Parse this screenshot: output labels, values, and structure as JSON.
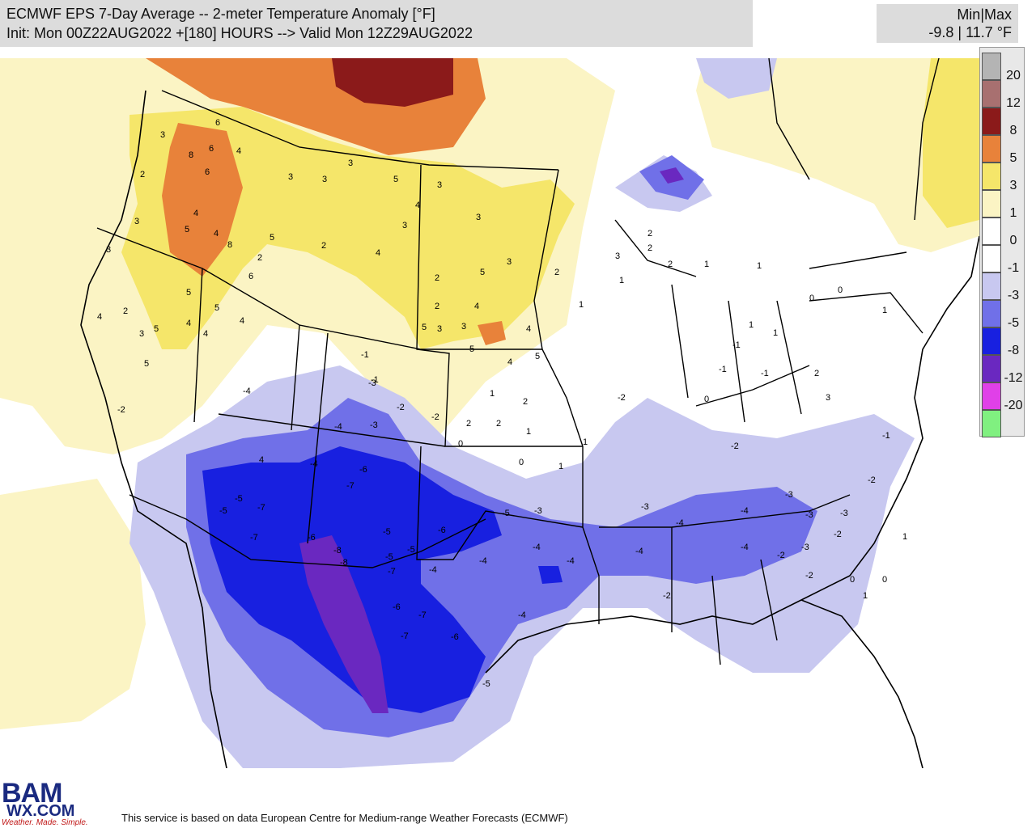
{
  "header": {
    "title_line1": "ECMWF EPS 7-Day Average -- 2-meter Temperature Anomaly [°F]",
    "title_line2": "Init: Mon 00Z22AUG2022 +[180] HOURS --> Valid Mon 12Z29AUG2022"
  },
  "minmax": {
    "label": "Min|Max",
    "value": "-9.8 | 11.7 °F"
  },
  "legend": {
    "levels": [
      {
        "label": "20",
        "color": "#b4b4b4"
      },
      {
        "label": "12",
        "color": "#a87070"
      },
      {
        "label": "8",
        "color": "#8b1a1a"
      },
      {
        "label": "5",
        "color": "#e8823a"
      },
      {
        "label": "3",
        "color": "#f5e66a"
      },
      {
        "label": "1",
        "color": "#fbf4c4"
      },
      {
        "label": "0",
        "color": "#ffffff"
      },
      {
        "label": "-1",
        "color": "#ffffff"
      },
      {
        "label": "-3",
        "color": "#c8c8f0"
      },
      {
        "label": "-5",
        "color": "#7070e8"
      },
      {
        "label": "-8",
        "color": "#1820e0"
      },
      {
        "label": "-12",
        "color": "#6a28c0"
      },
      {
        "label": "-20",
        "color": "#e040e8"
      },
      {
        "label": "",
        "color": "#80f080"
      }
    ]
  },
  "map_values": [
    {
      "t": "6"
    },
    {
      "t": "8"
    },
    {
      "t": "6"
    },
    {
      "t": "4"
    },
    {
      "t": "6"
    },
    {
      "t": "3"
    },
    {
      "t": "2"
    },
    {
      "t": "5"
    },
    {
      "t": "3"
    },
    {
      "t": "3"
    },
    {
      "t": "4"
    },
    {
      "t": "4"
    },
    {
      "t": "5"
    },
    {
      "t": "8"
    },
    {
      "t": "6"
    },
    {
      "t": "2"
    },
    {
      "t": "5"
    },
    {
      "t": "4"
    },
    {
      "t": "3"
    },
    {
      "t": "5"
    },
    {
      "t": "5"
    },
    {
      "t": "4"
    },
    {
      "t": "2"
    },
    {
      "t": "4"
    },
    {
      "t": "3"
    },
    {
      "t": "3"
    },
    {
      "t": "3"
    },
    {
      "t": "5"
    },
    {
      "t": "4"
    },
    {
      "t": "3"
    },
    {
      "t": "2"
    },
    {
      "t": "3"
    },
    {
      "t": "4"
    },
    {
      "t": "3"
    },
    {
      "t": "2"
    },
    {
      "t": "5"
    },
    {
      "t": "3"
    },
    {
      "t": "2"
    },
    {
      "t": "4"
    },
    {
      "t": "5"
    },
    {
      "t": "3"
    },
    {
      "t": "5"
    },
    {
      "t": "4"
    },
    {
      "t": "5"
    },
    {
      "t": "4"
    },
    {
      "t": "3"
    },
    {
      "t": "2"
    },
    {
      "t": "1"
    },
    {
      "t": "2"
    },
    {
      "t": "2"
    },
    {
      "t": "0"
    },
    {
      "t": "1"
    },
    {
      "t": "1"
    },
    {
      "t": "0"
    },
    {
      "t": "-1"
    },
    {
      "t": "-2"
    },
    {
      "t": "-2"
    },
    {
      "t": "-1"
    },
    {
      "t": "-2"
    },
    {
      "t": "-3"
    },
    {
      "t": "-2"
    },
    {
      "t": "-2"
    },
    {
      "t": "-3"
    },
    {
      "t": "-3"
    },
    {
      "t": "-2"
    },
    {
      "t": "-1"
    },
    {
      "t": "1"
    },
    {
      "t": "0"
    },
    {
      "t": "0"
    },
    {
      "t": "1"
    },
    {
      "t": "2"
    },
    {
      "t": "-4"
    },
    {
      "t": "-3"
    },
    {
      "t": "-4"
    },
    {
      "t": "-3"
    },
    {
      "t": "-4"
    },
    {
      "t": "-5"
    },
    {
      "t": "-5"
    },
    {
      "t": "-7"
    },
    {
      "t": "-7"
    },
    {
      "t": "-6"
    },
    {
      "t": "-7"
    },
    {
      "t": "-6"
    },
    {
      "t": "-5"
    },
    {
      "t": "-5"
    },
    {
      "t": "-8"
    },
    {
      "t": "-8"
    },
    {
      "t": "-7"
    },
    {
      "t": "-6"
    },
    {
      "t": "-7"
    },
    {
      "t": "-7"
    },
    {
      "t": "-6"
    },
    {
      "t": "-5"
    },
    {
      "t": "-6"
    },
    {
      "t": "-4"
    },
    {
      "t": "-4"
    },
    {
      "t": "-5"
    },
    {
      "t": "-5"
    },
    {
      "t": "-4"
    },
    {
      "t": "-4"
    },
    {
      "t": "-4"
    },
    {
      "t": "-3"
    },
    {
      "t": "-4"
    },
    {
      "t": "-4"
    },
    {
      "t": "-4"
    },
    {
      "t": "-4"
    },
    {
      "t": "-3"
    },
    {
      "t": "-3"
    },
    {
      "t": "-2"
    },
    {
      "t": "-2"
    },
    {
      "t": "-2"
    },
    {
      "t": "0"
    },
    {
      "t": "1"
    },
    {
      "t": "0"
    },
    {
      "t": "1"
    },
    {
      "t": "1"
    },
    {
      "t": "-1"
    },
    {
      "t": "-1"
    },
    {
      "t": "0"
    },
    {
      "t": "1"
    },
    {
      "t": "-1"
    },
    {
      "t": "2"
    },
    {
      "t": "3"
    },
    {
      "t": "1"
    },
    {
      "t": "2"
    },
    {
      "t": "3"
    },
    {
      "t": "2"
    },
    {
      "t": "1"
    },
    {
      "t": "2"
    },
    {
      "t": "1"
    },
    {
      "t": "1"
    },
    {
      "t": "4"
    },
    {
      "t": "-2"
    },
    {
      "t": "5"
    },
    {
      "t": "4"
    },
    {
      "t": "-4"
    }
  ]
}
